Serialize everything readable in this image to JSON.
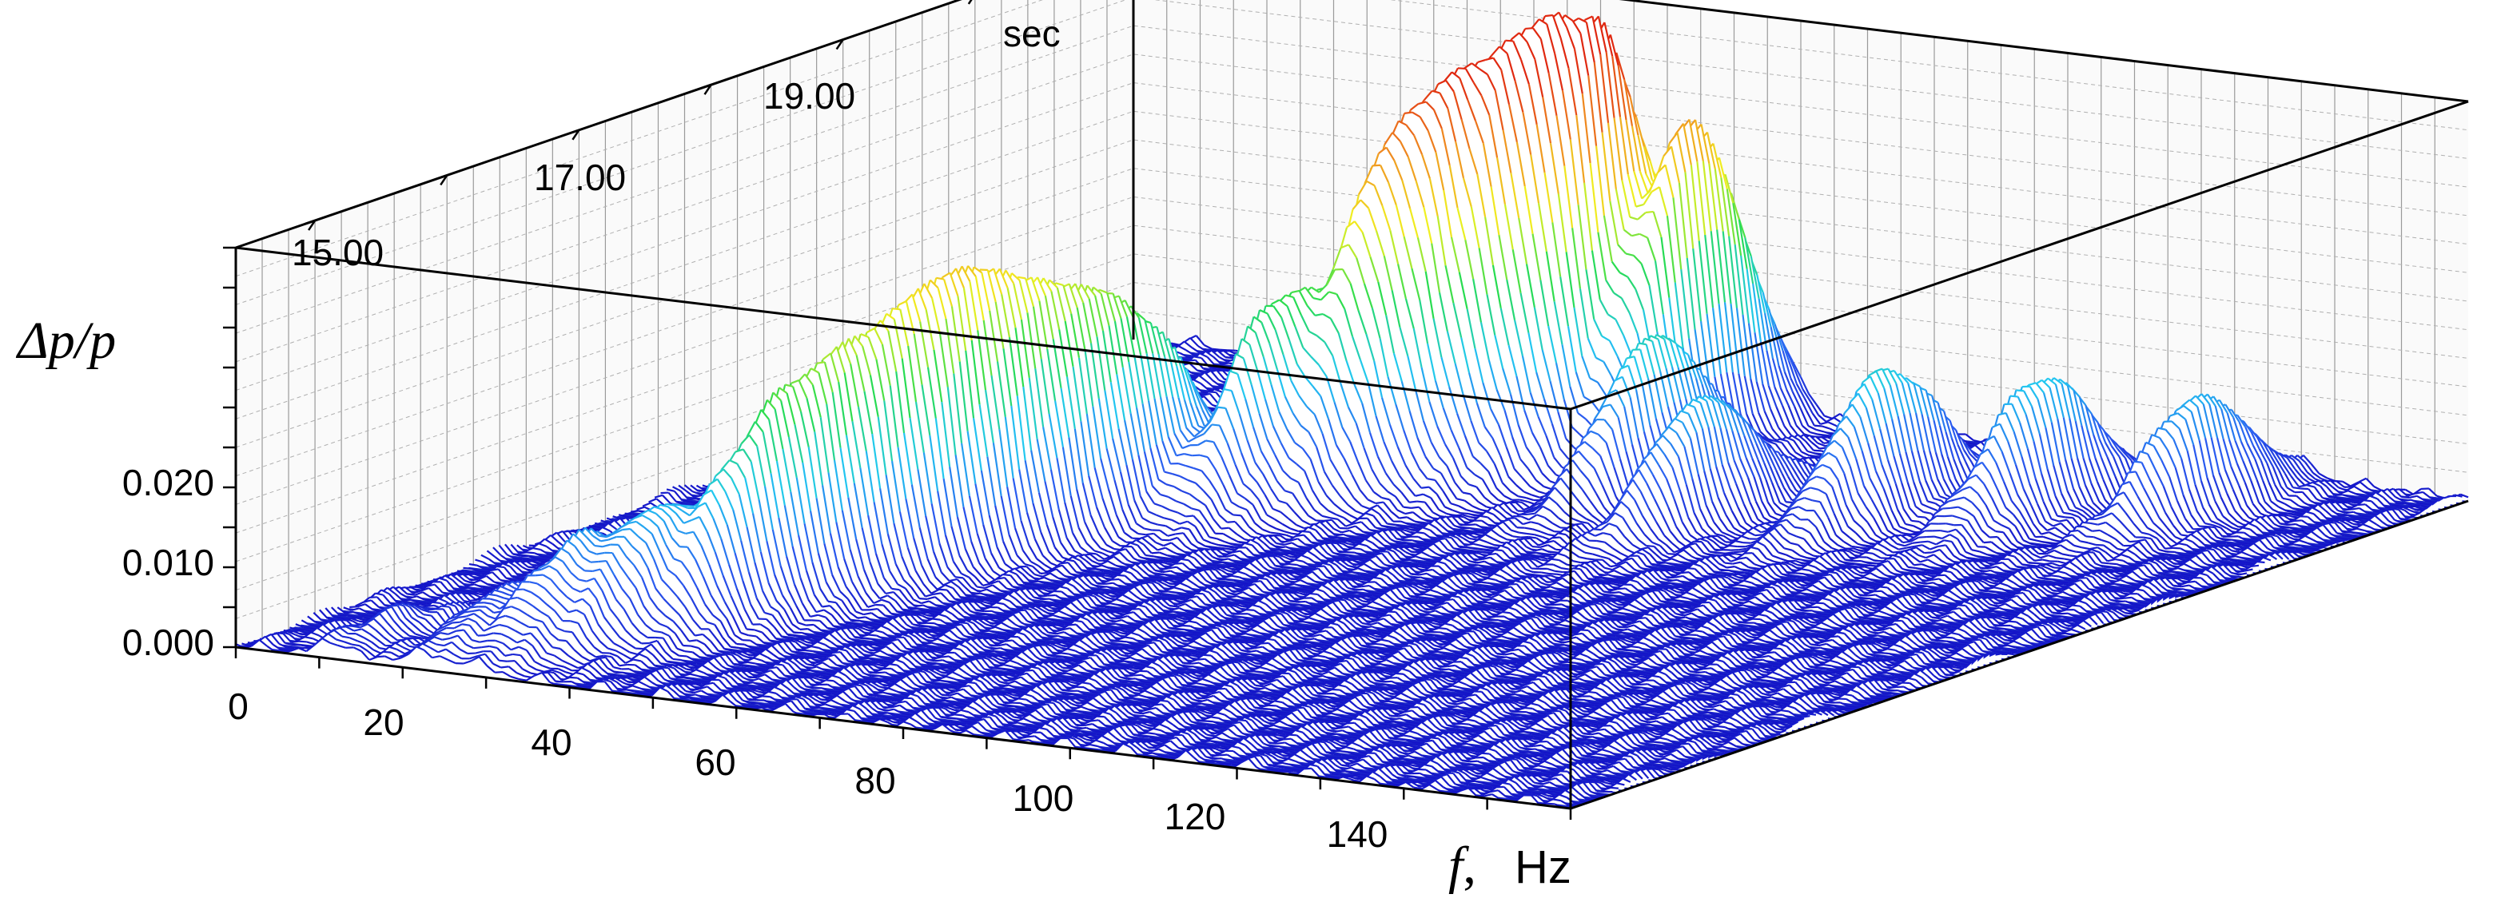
{
  "chart_data": {
    "type": "surface-3d-waterfall",
    "x_axis": {
      "symbol": "f",
      "unit": "Hz",
      "ticks": [
        "0",
        "20",
        "40",
        "60",
        "80",
        "100",
        "120",
        "140"
      ],
      "range": [
        0,
        160
      ]
    },
    "t_axis": {
      "unit": "sec",
      "ticks": [
        "15.00",
        "17.00",
        "19.00"
      ],
      "range": [
        13.4,
        20.2
      ]
    },
    "z_axis": {
      "label": "Δp/p",
      "ticks": [
        "0.000",
        "0.010",
        "0.020"
      ],
      "range": [
        0,
        0.05
      ]
    },
    "grid": true,
    "colormap": [
      "#1414c8",
      "#2a5cf0",
      "#22c8f0",
      "#28dc50",
      "#f0f020",
      "#f09020",
      "#e02810"
    ],
    "peaks": [
      {
        "f": 12,
        "t": 13.8,
        "a": 0.003
      },
      {
        "f": 22,
        "t": 14.0,
        "a": 0.006
      },
      {
        "f": 28,
        "t": 14.2,
        "a": 0.011
      },
      {
        "f": 33,
        "t": 14.5,
        "a": 0.014
      },
      {
        "f": 38,
        "t": 14.9,
        "a": 0.017
      },
      {
        "f": 40,
        "t": 15.4,
        "a": 0.019
      },
      {
        "f": 42,
        "t": 15.9,
        "a": 0.021
      },
      {
        "f": 44,
        "t": 16.3,
        "a": 0.022
      },
      {
        "f": 46,
        "t": 16.8,
        "a": 0.02
      },
      {
        "f": 48,
        "t": 17.3,
        "a": 0.018
      },
      {
        "f": 55,
        "t": 17.8,
        "a": 0.024
      },
      {
        "f": 60,
        "t": 18.3,
        "a": 0.035
      },
      {
        "f": 64,
        "t": 18.6,
        "a": 0.039
      },
      {
        "f": 68,
        "t": 18.9,
        "a": 0.042
      },
      {
        "f": 72,
        "t": 19.2,
        "a": 0.045
      },
      {
        "f": 78,
        "t": 19.5,
        "a": 0.04
      },
      {
        "f": 86,
        "t": 18.7,
        "a": 0.02
      },
      {
        "f": 98,
        "t": 18.3,
        "a": 0.016
      },
      {
        "f": 112,
        "t": 18.8,
        "a": 0.018
      },
      {
        "f": 126,
        "t": 19.1,
        "a": 0.017
      },
      {
        "f": 140,
        "t": 19.4,
        "a": 0.015
      }
    ]
  }
}
